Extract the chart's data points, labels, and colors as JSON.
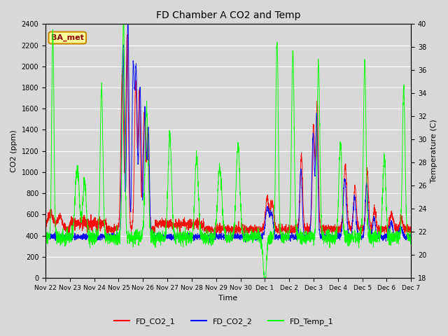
{
  "title": "FD Chamber A CO2 and Temp",
  "xlabel": "Time",
  "ylabel_left": "CO2 (ppm)",
  "ylabel_right": "Temperature (C)",
  "ylim_left": [
    0,
    2400
  ],
  "ylim_right": [
    18,
    40
  ],
  "yticks_left": [
    0,
    200,
    400,
    600,
    800,
    1000,
    1200,
    1400,
    1600,
    1800,
    2000,
    2200,
    2400
  ],
  "yticks_right": [
    18,
    20,
    22,
    24,
    26,
    28,
    30,
    32,
    34,
    36,
    38,
    40
  ],
  "background_color": "#d8d8d8",
  "plot_bg_color": "#d8d8d8",
  "line_colors": [
    "red",
    "blue",
    "lime"
  ],
  "annotation_text": "BA_met",
  "annotation_bg": "#ffff99",
  "annotation_border": "#cc8800",
  "x_tick_labels": [
    "Nov 22",
    "Nov 23",
    "Nov 24",
    "Nov 25",
    "Nov 26",
    "Nov 27",
    "Nov 28",
    "Nov 29",
    "Nov 30",
    "Dec 1",
    "Dec 2",
    "Dec 3",
    "Dec 4",
    "Dec 5",
    "Dec 6",
    "Dec 7"
  ]
}
